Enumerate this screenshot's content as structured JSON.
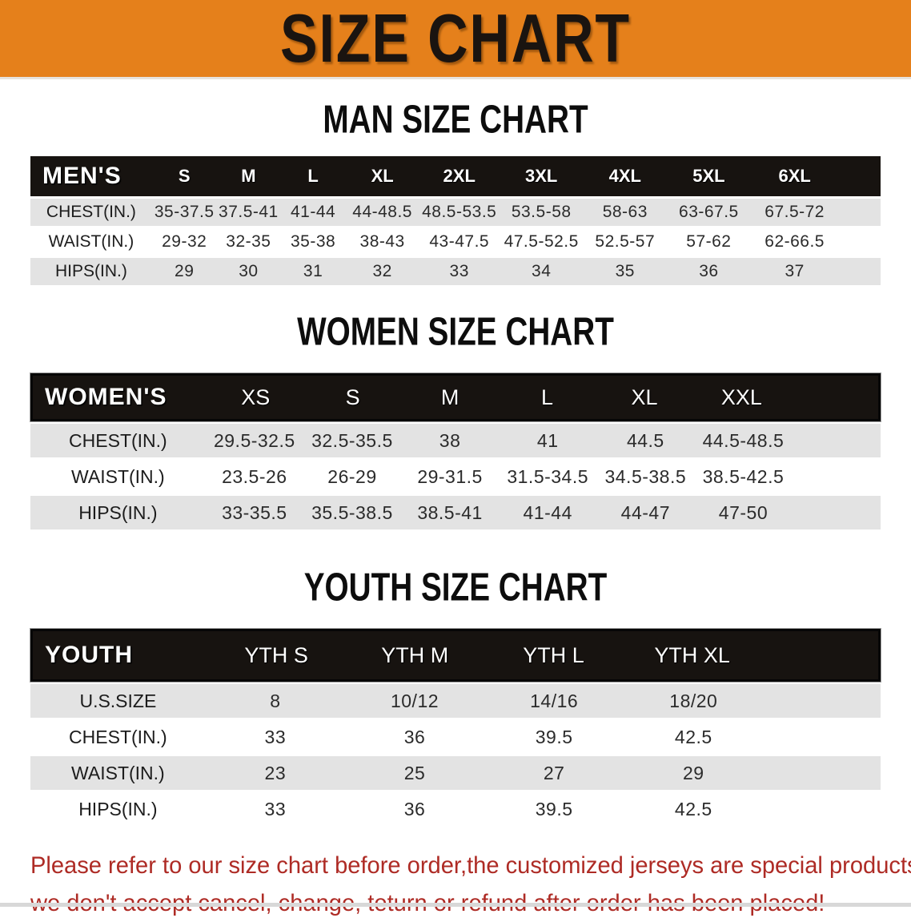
{
  "banner": {
    "title": "SIZE CHART",
    "bg_color": "#E5801B",
    "text_color": "#1A1410"
  },
  "sections": [
    {
      "id": "men",
      "title": "MAN SIZE CHART",
      "table": {
        "header_label": "MEN'S",
        "columns": [
          "S",
          "M",
          "L",
          "XL",
          "2XL",
          "3XL",
          "4XL",
          "5XL",
          "6XL"
        ],
        "rows": [
          {
            "label": "CHEST(IN.)",
            "values": [
              "35-37.5",
              "37.5-41",
              "41-44",
              "44-48.5",
              "48.5-53.5",
              "53.5-58",
              "58-63",
              "63-67.5",
              "67.5-72"
            ]
          },
          {
            "label": "WAIST(IN.)",
            "values": [
              "29-32",
              "32-35",
              "35-38",
              "38-43",
              "43-47.5",
              "47.5-52.5",
              "52.5-57",
              "57-62",
              "62-66.5"
            ]
          },
          {
            "label": "HIPS(IN.)",
            "values": [
              "29",
              "30",
              "31",
              "32",
              "33",
              "34",
              "35",
              "36",
              "37"
            ]
          }
        ]
      }
    },
    {
      "id": "women",
      "title": "WOMEN SIZE CHART",
      "table": {
        "header_label": "WOMEN'S",
        "columns": [
          "XS",
          "S",
          "M",
          "L",
          "XL",
          "XXL"
        ],
        "rows": [
          {
            "label": "CHEST(IN.)",
            "values": [
              "29.5-32.5",
              "32.5-35.5",
              "38",
              "41",
              "44.5",
              "44.5-48.5"
            ]
          },
          {
            "label": "WAIST(IN.)",
            "values": [
              "23.5-26",
              "26-29",
              "29-31.5",
              "31.5-34.5",
              "34.5-38.5",
              "38.5-42.5"
            ]
          },
          {
            "label": "HIPS(IN.)",
            "values": [
              "33-35.5",
              "35.5-38.5",
              "38.5-41",
              "41-44",
              "44-47",
              "47-50"
            ]
          }
        ]
      }
    },
    {
      "id": "youth",
      "title": "YOUTH SIZE CHART",
      "table": {
        "header_label": "YOUTH",
        "columns": [
          "YTH S",
          "YTH M",
          "YTH L",
          "YTH XL"
        ],
        "rows": [
          {
            "label": "U.S.SIZE",
            "values": [
              "8",
              "10/12",
              "14/16",
              "18/20"
            ]
          },
          {
            "label": "CHEST(IN.)",
            "values": [
              "33",
              "36",
              "39.5",
              "42.5"
            ]
          },
          {
            "label": "WAIST(IN.)",
            "values": [
              "23",
              "25",
              "27",
              "29"
            ]
          },
          {
            "label": "HIPS(IN.)",
            "values": [
              "33",
              "36",
              "39.5",
              "42.5"
            ]
          }
        ]
      }
    }
  ],
  "footer": {
    "line1": "Please refer to our size chart before order,the customized jerseys are special products,",
    "line2": "we don't accept cancel, change, teturn or refund after order has been placed!",
    "text_color": "#AE2B25"
  },
  "colors": {
    "banner_orange": "#E5801B",
    "header_bar_black": "#171310",
    "stripe_gray": "#E3E3E3",
    "row_text": "#2B2B2B"
  }
}
